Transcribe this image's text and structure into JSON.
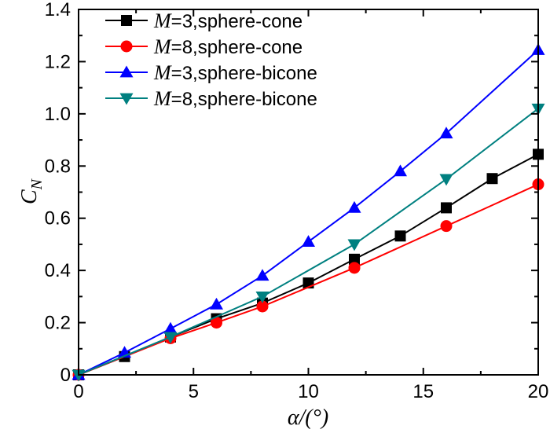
{
  "chart_data": {
    "type": "line",
    "xlabel": "α/(°)",
    "ylabel": "C",
    "ylabel_subscript": "N",
    "xlim": [
      0,
      20
    ],
    "ylim": [
      0,
      1.4
    ],
    "x_ticks": [
      0,
      5,
      10,
      15,
      20
    ],
    "x_tick_labels": [
      "0",
      "5",
      "10",
      "15",
      "20"
    ],
    "y_ticks": [
      0,
      0.2,
      0.4,
      0.6,
      0.8,
      1.0,
      1.2,
      1.4
    ],
    "y_tick_labels": [
      "0",
      "0.2",
      "0.4",
      "0.6",
      "0.8",
      "1.0",
      "1.2",
      "1.4"
    ],
    "legend_position": "top-left",
    "series": [
      {
        "name": "M=3,sphere-cone",
        "legend_var": "M",
        "legend_rest": "=3,sphere-cone",
        "color": "#000000",
        "marker": "square",
        "x": [
          0,
          2,
          4,
          6,
          8,
          10,
          12,
          14,
          16,
          18,
          20
        ],
        "y": [
          0.0,
          0.07,
          0.145,
          0.215,
          0.275,
          0.352,
          0.443,
          0.532,
          0.64,
          0.752,
          0.845
        ]
      },
      {
        "name": "M=8,sphere-cone",
        "legend_var": "M",
        "legend_rest": "=8,sphere-cone",
        "color": "#ff0000",
        "marker": "circle",
        "x": [
          0,
          4,
          6,
          8,
          12,
          16,
          20
        ],
        "y": [
          0.0,
          0.14,
          0.2,
          0.262,
          0.41,
          0.57,
          0.73
        ]
      },
      {
        "name": "M=3,sphere-bicone",
        "legend_var": "M",
        "legend_rest": "=3,sphere-bicone",
        "color": "#0000ff",
        "marker": "triangle-up",
        "x": [
          0,
          2,
          4,
          6,
          8,
          10,
          12,
          14,
          16,
          20
        ],
        "y": [
          0.0,
          0.085,
          0.177,
          0.27,
          0.38,
          0.51,
          0.64,
          0.78,
          0.925,
          1.245
        ]
      },
      {
        "name": "M=8,sphere-bicone",
        "legend_var": "M",
        "legend_rest": "=8,sphere-bicone",
        "color": "#008080",
        "marker": "triangle-down",
        "x": [
          0,
          4,
          8,
          12,
          16,
          20
        ],
        "y": [
          0.0,
          0.145,
          0.3,
          0.5,
          0.75,
          1.02
        ]
      }
    ]
  }
}
